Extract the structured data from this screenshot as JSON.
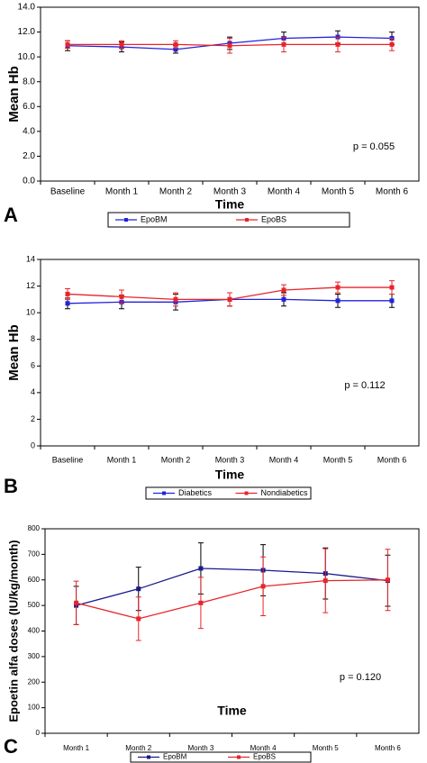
{
  "chart_data": [
    {
      "type": "line",
      "panel_label": "A",
      "x_label": "Time",
      "y_label": "Mean Hb",
      "annotation": "p = 0.055",
      "categories": [
        "Baseline",
        "Month 1",
        "Month 2",
        "Month 3",
        "Month 4",
        "Month 5",
        "Month 6"
      ],
      "series": [
        {
          "name": "EpoBM",
          "color": "#2323d8",
          "values": [
            10.9,
            10.8,
            10.6,
            11.1,
            11.5,
            11.6,
            11.5
          ],
          "errors": [
            0.4,
            0.4,
            0.3,
            0.5,
            0.5,
            0.5,
            0.5
          ]
        },
        {
          "name": "EpoBS",
          "color": "#e8242a",
          "values": [
            11.0,
            11.0,
            11.0,
            10.9,
            11.0,
            11.0,
            11.0
          ],
          "errors": [
            0.3,
            0.3,
            0.3,
            0.6,
            0.6,
            0.6,
            0.5
          ]
        }
      ],
      "ylim": [
        0,
        14
      ],
      "yticks": [
        {
          "value": 0,
          "label": "0.0"
        },
        {
          "value": 2,
          "label": "2.0"
        },
        {
          "value": 4,
          "label": "4.0"
        },
        {
          "value": 6,
          "label": "6.0"
        },
        {
          "value": 8,
          "label": "8.0"
        },
        {
          "value": 10,
          "label": "10.0"
        },
        {
          "value": 12,
          "label": "12.0"
        },
        {
          "value": 14,
          "label": "14.0"
        }
      ]
    },
    {
      "type": "line",
      "panel_label": "B",
      "x_label": "Time",
      "y_label": "Mean Hb",
      "annotation": "p = 0.112",
      "categories": [
        "Baseline",
        "Month 1",
        "Month 2",
        "Month 3",
        "Month 4",
        "Month 5",
        "Month 6"
      ],
      "series": [
        {
          "name": "Diabetics",
          "color": "#2323d8",
          "values": [
            10.7,
            10.8,
            10.8,
            11.0,
            11.0,
            10.9,
            10.9
          ],
          "errors": [
            0.4,
            0.5,
            0.6,
            0.5,
            0.5,
            0.5,
            0.5
          ]
        },
        {
          "name": "Nondiabetics",
          "color": "#e8242a",
          "values": [
            11.4,
            11.2,
            11.0,
            11.0,
            11.7,
            11.9,
            11.9
          ],
          "errors": [
            0.4,
            0.5,
            0.5,
            0.5,
            0.4,
            0.4,
            0.5
          ]
        }
      ],
      "ylim": [
        0,
        14
      ],
      "yticks": [
        0,
        2,
        4,
        6,
        8,
        10,
        12,
        14
      ]
    },
    {
      "type": "line",
      "panel_label": "C",
      "x_label": "Time",
      "y_label": "Epoetin alfa doses (IU/kg/month)",
      "annotation": "p = 0.120",
      "categories": [
        "Month 1",
        "Month 2",
        "Month 3",
        "Month 4",
        "Month 5",
        "Month 6"
      ],
      "series": [
        {
          "name": "EpoBM",
          "color": "#1a1a8c",
          "values": [
            500,
            565,
            645,
            638,
            625,
            597
          ],
          "errors": [
            75,
            85,
            100,
            100,
            100,
            100
          ]
        },
        {
          "name": "EpoBS",
          "color": "#e8242a",
          "values": [
            510,
            448,
            510,
            575,
            597,
            600
          ],
          "errors": [
            85,
            85,
            100,
            115,
            125,
            120
          ]
        }
      ],
      "ylim": [
        0,
        800
      ],
      "yticks": [
        0,
        100,
        200,
        300,
        400,
        500,
        600,
        700,
        800
      ]
    }
  ]
}
